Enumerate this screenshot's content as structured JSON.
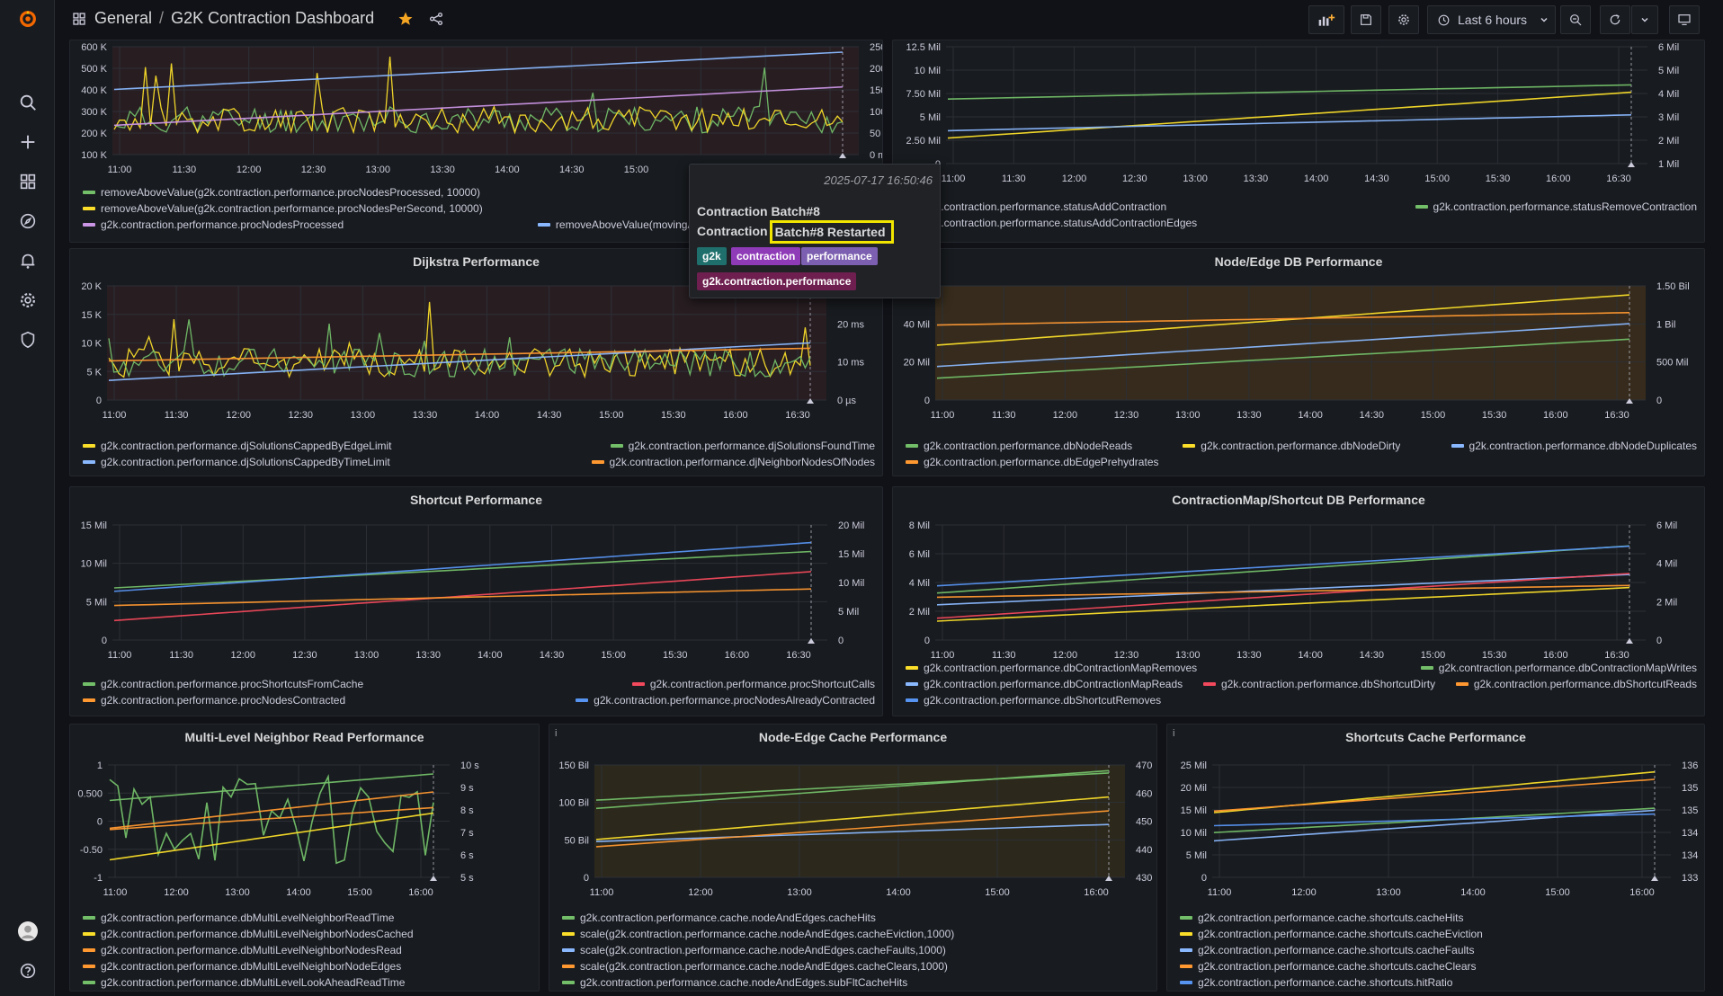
{
  "breadcrumb": {
    "folder": "General",
    "dashboard": "G2K Contraction Dashboard"
  },
  "toolbar": {
    "time_range": "Last 6 hours"
  },
  "tooltip": {
    "time": "2025-07-17 16:50:46",
    "title": "Contraction Batch#8",
    "text_prefix": "Contraction",
    "text_highlight": "Batch#8 Restarted",
    "tags": [
      "g2k",
      "contraction",
      "performance",
      "g2k.contraction.performance"
    ]
  },
  "panels": [
    {
      "id": "p1",
      "title": "",
      "x_ticks": [
        "11:00",
        "11:30",
        "12:00",
        "12:30",
        "13:00",
        "13:30",
        "14:00",
        "14:30",
        "15:00",
        "15:30",
        "16:00",
        "16:30"
      ],
      "y_left": [
        "600 K",
        "500 K",
        "400 K",
        "300 K",
        "200 K",
        "100 K"
      ],
      "y_right": [
        "250 ms",
        "200 ms",
        "150 ms",
        "100 ms",
        "50 ms",
        "0 ms"
      ],
      "legend": [
        [
          {
            "label": "removeAboveValue(g2k.contraction.performance.procNodesProcessed, 10000)",
            "color": "#73bf69"
          }
        ],
        [
          {
            "label": "removeAboveValue(g2k.contraction.performance.procNodesPerSecond, 10000)",
            "color": "#fade2a"
          }
        ],
        [
          {
            "label": "g2k.contraction.performance.procNodesProcessed",
            "color": "#ca95e5"
          },
          {
            "label": "removeAboveValue(movingAverage(g2k.contraction.performance))",
            "color": "#8ab8ff"
          }
        ]
      ]
    },
    {
      "id": "p2",
      "title": "",
      "x_ticks": [
        "11:00",
        "11:30",
        "12:00",
        "12:30",
        "13:00",
        "13:30",
        "14:00",
        "14:30",
        "15:00",
        "15:30",
        "16:00",
        "16:30"
      ],
      "y_left": [
        "12.5 Mil",
        "10 Mil",
        "7.50 Mil",
        "5 Mil",
        "2.50 Mil",
        "0"
      ],
      "y_right": [
        "6 Mil",
        "5 Mil",
        "4 Mil",
        "3 Mil",
        "2 Mil",
        "1 Mil"
      ],
      "legend": [
        [
          {
            "label": "g2k.contraction.performance.statusAddContraction",
            "color": "#fade2a"
          },
          {
            "label": "g2k.contraction.performance.statusRemoveContraction",
            "color": "#73bf69"
          }
        ],
        [
          {
            "label": "g2k.contraction.performance.statusAddContractionEdges",
            "color": "#8ab8ff"
          }
        ]
      ]
    },
    {
      "id": "p3",
      "title": "Dijkstra Performance",
      "x_ticks": [
        "11:00",
        "11:30",
        "12:00",
        "12:30",
        "13:00",
        "13:30",
        "14:00",
        "14:30",
        "15:00",
        "15:30",
        "16:00",
        "16:30"
      ],
      "y_left": [
        "20 K",
        "15 K",
        "10 K",
        "5 K",
        "0"
      ],
      "y_right": [
        "",
        "20 ms",
        "10 ms",
        "0 µs"
      ],
      "legend": [
        [
          {
            "label": "g2k.contraction.performance.djSolutionsCappedByEdgeLimit",
            "color": "#fade2a"
          },
          {
            "label": "g2k.contraction.performance.djSolutionsFoundTime",
            "color": "#73bf69"
          }
        ],
        [
          {
            "label": "g2k.contraction.performance.djSolutionsCappedByTimeLimit",
            "color": "#8ab8ff"
          },
          {
            "label": "g2k.contraction.performance.djNeighborNodesOfNodes",
            "color": "#ff9830"
          }
        ]
      ]
    },
    {
      "id": "p4",
      "title": "Node/Edge DB Performance",
      "x_ticks": [
        "11:00",
        "11:30",
        "12:00",
        "12:30",
        "13:00",
        "13:30",
        "14:00",
        "14:30",
        "15:00",
        "15:30",
        "16:00",
        "16:30"
      ],
      "y_left": [
        "60 Mil",
        "40 Mil",
        "20 Mil",
        "0"
      ],
      "y_right": [
        "1.50 Bil",
        "1 Bil",
        "500 Mil",
        "0"
      ],
      "legend": [
        [
          {
            "label": "g2k.contraction.performance.dbNodeReads",
            "color": "#73bf69"
          },
          {
            "label": "g2k.contraction.performance.dbNodeDirty",
            "color": "#fade2a"
          },
          {
            "label": "g2k.contraction.performance.dbNodeDuplicates",
            "color": "#8ab8ff"
          }
        ],
        [
          {
            "label": "g2k.contraction.performance.dbEdgePrehydrates",
            "color": "#ff9830"
          }
        ]
      ]
    },
    {
      "id": "p5",
      "title": "Shortcut Performance",
      "x_ticks": [
        "11:00",
        "11:30",
        "12:00",
        "12:30",
        "13:00",
        "13:30",
        "14:00",
        "14:30",
        "15:00",
        "15:30",
        "16:00",
        "16:30"
      ],
      "y_left": [
        "15 Mil",
        "10 Mil",
        "5 Mil",
        "0"
      ],
      "y_right": [
        "20 Mil",
        "15 Mil",
        "10 Mil",
        "5 Mil",
        "0"
      ],
      "legend": [
        [
          {
            "label": "g2k.contraction.performance.procShortcutsFromCache",
            "color": "#73bf69"
          },
          {
            "label": "g2k.contraction.performance.procShortcutCalls",
            "color": "#f2495c"
          }
        ],
        [
          {
            "label": "g2k.contraction.performance.procNodesContracted",
            "color": "#ff9830"
          },
          {
            "label": "g2k.contraction.performance.procNodesAlreadyContracted",
            "color": "#5794f2"
          }
        ]
      ]
    },
    {
      "id": "p6",
      "title": "ContractionMap/Shortcut DB Performance",
      "x_ticks": [
        "11:00",
        "11:30",
        "12:00",
        "12:30",
        "13:00",
        "13:30",
        "14:00",
        "14:30",
        "15:00",
        "15:30",
        "16:00",
        "16:30"
      ],
      "y_left": [
        "8 Mil",
        "6 Mil",
        "4 Mil",
        "2 Mil",
        "0"
      ],
      "y_right": [
        "6 Mil",
        "4 Mil",
        "2 Mil",
        "0"
      ],
      "legend": [
        [
          {
            "label": "g2k.contraction.performance.dbContractionMapRemoves",
            "color": "#fade2a"
          },
          {
            "label": "g2k.contraction.performance.dbContractionMapWrites",
            "color": "#73bf69"
          }
        ],
        [
          {
            "label": "g2k.contraction.performance.dbContractionMapReads",
            "color": "#8ab8ff"
          },
          {
            "label": "g2k.contraction.performance.dbShortcutDirty",
            "color": "#f2495c"
          },
          {
            "label": "g2k.contraction.performance.dbShortcutReads",
            "color": "#ff9830"
          }
        ],
        [
          {
            "label": "g2k.contraction.performance.dbShortcutRemoves",
            "color": "#5794f2"
          }
        ]
      ]
    },
    {
      "id": "p7",
      "title": "Multi-Level Neighbor Read Performance",
      "x_ticks": [
        "11:00",
        "12:00",
        "13:00",
        "14:00",
        "15:00",
        "16:00"
      ],
      "y_left": [
        "1",
        "0.500",
        "0",
        "-0.50",
        "-1"
      ],
      "y_right": [
        "10 s",
        "9 s",
        "8 s",
        "7 s",
        "6 s",
        "5 s"
      ],
      "legend": [
        [
          {
            "label": "g2k.contraction.performance.dbMultiLevelNeighborReadTime",
            "color": "#73bf69"
          }
        ],
        [
          {
            "label": "g2k.contraction.performance.dbMultiLevelNeighborNodesCached",
            "color": "#fade2a"
          }
        ],
        [
          {
            "label": "g2k.contraction.performance.dbMultiLevelNeighborNodesRead",
            "color": "#ff9830"
          }
        ],
        [
          {
            "label": "g2k.contraction.performance.dbMultiLevelNeighborNodeEdges",
            "color": "#ff9830"
          }
        ],
        [
          {
            "label": "g2k.contraction.performance.dbMultiLevelLookAheadReadTime",
            "color": "#73bf69"
          }
        ]
      ]
    },
    {
      "id": "p8",
      "title": "Node-Edge Cache Performance",
      "x_ticks": [
        "11:00",
        "12:00",
        "13:00",
        "14:00",
        "15:00",
        "16:00"
      ],
      "y_left": [
        "150 Bil",
        "100 Bil",
        "50 Bil",
        "0"
      ],
      "y_right": [
        "470",
        "460",
        "450",
        "440",
        "430"
      ],
      "legend": [
        [
          {
            "label": "g2k.contraction.performance.cache.nodeAndEdges.cacheHits",
            "color": "#73bf69"
          }
        ],
        [
          {
            "label": "scale(g2k.contraction.performance.cache.nodeAndEdges.cacheEviction,1000)",
            "color": "#fade2a"
          }
        ],
        [
          {
            "label": "scale(g2k.contraction.performance.cache.nodeAndEdges.cacheFaults,1000)",
            "color": "#8ab8ff"
          }
        ],
        [
          {
            "label": "scale(g2k.contraction.performance.cache.nodeAndEdges.cacheClears,1000)",
            "color": "#ff9830"
          }
        ],
        [
          {
            "label": "g2k.contraction.performance.cache.nodeAndEdges.subFltCacheHits",
            "color": "#73bf69"
          }
        ]
      ]
    },
    {
      "id": "p9",
      "title": "Shortcuts Cache Performance",
      "x_ticks": [
        "11:00",
        "12:00",
        "13:00",
        "14:00",
        "15:00",
        "16:00"
      ],
      "y_left": [
        "25 Mil",
        "20 Mil",
        "15 Mil",
        "10 Mil",
        "5 Mil",
        "0"
      ],
      "y_right": [
        "136",
        "135",
        "135",
        "134",
        "134",
        "133"
      ],
      "legend": [
        [
          {
            "label": "g2k.contraction.performance.cache.shortcuts.cacheHits",
            "color": "#73bf69"
          }
        ],
        [
          {
            "label": "g2k.contraction.performance.cache.shortcuts.cacheEviction",
            "color": "#fade2a"
          }
        ],
        [
          {
            "label": "g2k.contraction.performance.cache.shortcuts.cacheFaults",
            "color": "#8ab8ff"
          }
        ],
        [
          {
            "label": "g2k.contraction.performance.cache.shortcuts.cacheClears",
            "color": "#ff9830"
          }
        ],
        [
          {
            "label": "g2k.contraction.performance.cache.shortcuts.hitRatio",
            "color": "#5794f2"
          }
        ]
      ]
    }
  ]
}
